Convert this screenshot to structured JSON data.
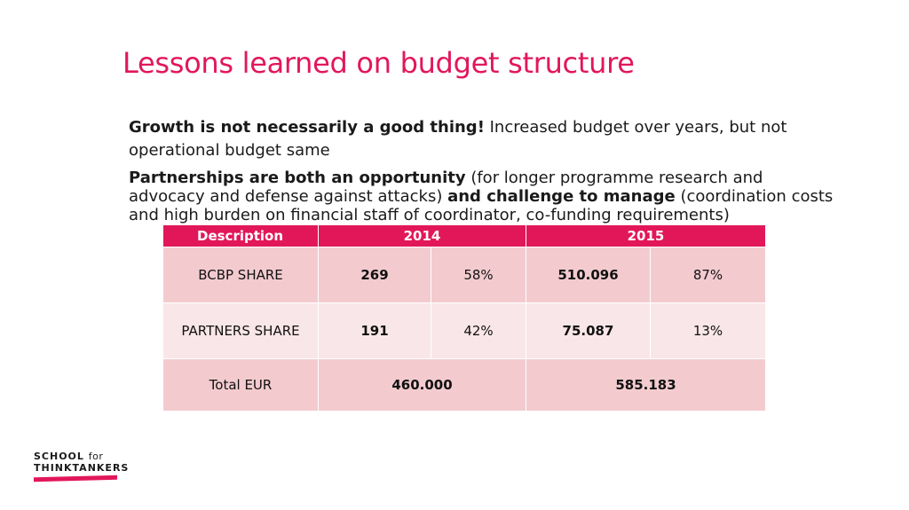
{
  "slide": {
    "title": "Lessons learned on budget structure",
    "point1": {
      "bold": "Growth is not necessarily a good thing!",
      "text": " Increased budget over years, but not operational budget same"
    },
    "point2": {
      "bold1": "Partnerships are both an opportunity",
      "text1": " (for longer programme research and advocacy and defense against attacks) ",
      "bold2": "and challenge to manage",
      "text2": " (coordination costs and high burden on financial staff of coordinator, co-funding requirements)"
    }
  },
  "table": {
    "headers": [
      "Description",
      "2014",
      "2015"
    ],
    "rows": [
      {
        "label": "BCBP SHARE",
        "v2014": "269",
        "p2014": "58%",
        "v2015": "510.096",
        "p2015": "87%"
      },
      {
        "label": "PARTNERS SHARE",
        "v2014": "191",
        "p2014": "42%",
        "v2015": "75.087",
        "p2015": "13%"
      }
    ],
    "total": {
      "label": "Total EUR",
      "v2014": "460.000",
      "v2015": "585.183"
    }
  },
  "logo": {
    "line1": "SCHOOL",
    "line1_small": "for",
    "line2": "THINKTANKERS"
  },
  "colors": {
    "accent": "#e2175a",
    "row_dark": "#f3cbcf",
    "row_light": "#f9e6e8"
  }
}
